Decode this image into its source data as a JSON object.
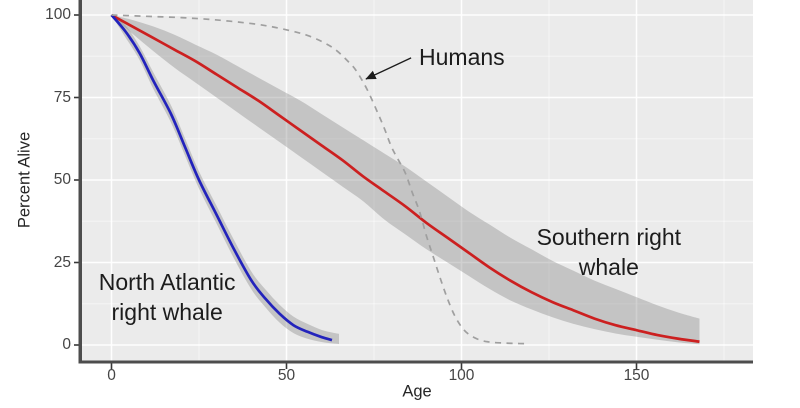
{
  "chart_data": {
    "type": "line",
    "title": "",
    "xlabel": "Age",
    "ylabel": "Percent Alive",
    "xlim": [
      -8,
      183
    ],
    "ylim": [
      -4.8,
      104.5
    ],
    "xticks": [
      0,
      50,
      100,
      150
    ],
    "yticks": [
      0,
      25,
      50,
      75,
      100
    ],
    "xticks_minor": [
      25,
      75,
      125,
      175
    ],
    "yticks_minor": [
      12.5,
      37.5,
      62.5,
      87.5
    ],
    "grid": "white major and minor gridlines on gray panel",
    "legend_position": "none (inline text annotations)",
    "panel_bg": "#ebebeb",
    "axis_line_color": "#4d4d4d",
    "band_fill": "rgba(128,128,128,0.36)",
    "series": [
      {
        "name": "Southern right whale",
        "color": "#cc2020",
        "dashed": false,
        "points": [
          [
            0,
            100
          ],
          [
            6,
            96.5
          ],
          [
            12,
            93
          ],
          [
            18,
            89.5
          ],
          [
            24,
            86
          ],
          [
            30,
            82
          ],
          [
            36,
            78
          ],
          [
            42,
            74
          ],
          [
            48,
            69.5
          ],
          [
            54,
            65
          ],
          [
            60,
            60.5
          ],
          [
            66,
            56
          ],
          [
            72,
            51
          ],
          [
            78,
            46.5
          ],
          [
            84,
            42
          ],
          [
            90,
            37
          ],
          [
            96,
            32.5
          ],
          [
            102,
            28
          ],
          [
            108,
            23.5
          ],
          [
            114,
            19.5
          ],
          [
            120,
            16
          ],
          [
            126,
            13
          ],
          [
            132,
            10.5
          ],
          [
            138,
            8
          ],
          [
            144,
            6
          ],
          [
            150,
            4.5
          ],
          [
            156,
            3
          ],
          [
            162,
            1.9
          ],
          [
            168,
            1
          ]
        ],
        "band": [
          [
            0,
            100,
            100
          ],
          [
            6,
            98.5,
            94.3
          ],
          [
            12,
            96.5,
            89
          ],
          [
            18,
            94,
            84
          ],
          [
            24,
            91,
            79.5
          ],
          [
            30,
            88,
            75
          ],
          [
            36,
            84.5,
            70.5
          ],
          [
            42,
            81,
            66
          ],
          [
            48,
            77.5,
            61.5
          ],
          [
            54,
            74,
            57
          ],
          [
            60,
            70,
            52.5
          ],
          [
            66,
            66,
            48
          ],
          [
            72,
            62,
            43.5
          ],
          [
            78,
            58,
            38
          ],
          [
            84,
            54,
            33.5
          ],
          [
            90,
            49.5,
            29
          ],
          [
            96,
            45,
            25
          ],
          [
            102,
            40.5,
            21
          ],
          [
            108,
            36.5,
            17
          ],
          [
            114,
            32.5,
            13.5
          ],
          [
            120,
            29,
            10.8
          ],
          [
            126,
            25.5,
            8.4
          ],
          [
            132,
            22.5,
            6.4
          ],
          [
            138,
            19.5,
            4.8
          ],
          [
            144,
            17,
            3.5
          ],
          [
            150,
            14.5,
            2.5
          ],
          [
            156,
            12,
            1.6
          ],
          [
            162,
            9.8,
            0.8
          ],
          [
            168,
            8,
            0.2
          ]
        ]
      },
      {
        "name": "North Atlantic right whale",
        "color": "#2323bc",
        "dashed": false,
        "points": [
          [
            0,
            100
          ],
          [
            4,
            95
          ],
          [
            8,
            88.5
          ],
          [
            12,
            80
          ],
          [
            17,
            70
          ],
          [
            21,
            60
          ],
          [
            25,
            50
          ],
          [
            30,
            39.5
          ],
          [
            35,
            29
          ],
          [
            40,
            19.5
          ],
          [
            44,
            14
          ],
          [
            48,
            9.5
          ],
          [
            52,
            6
          ],
          [
            56,
            4
          ],
          [
            60,
            2.4
          ],
          [
            63,
            1.5
          ]
        ],
        "band": [
          [
            0,
            100,
            100
          ],
          [
            4,
            96.8,
            93.2
          ],
          [
            8,
            90.6,
            86.4
          ],
          [
            12,
            82.5,
            77.5
          ],
          [
            17,
            72.6,
            67.4
          ],
          [
            21,
            62.6,
            57.4
          ],
          [
            25,
            52.6,
            47.4
          ],
          [
            30,
            42.2,
            36.8
          ],
          [
            35,
            31.8,
            26.2
          ],
          [
            40,
            22.2,
            16.8
          ],
          [
            44,
            16.8,
            11.4
          ],
          [
            48,
            12.2,
            6.8
          ],
          [
            52,
            8.6,
            3.6
          ],
          [
            56,
            6.4,
            1.9
          ],
          [
            60,
            4.6,
            0.9
          ],
          [
            63,
            3.8,
            0.5
          ],
          [
            65,
            3.4,
            0.3
          ]
        ]
      },
      {
        "name": "Humans",
        "color": "#9f9f9f",
        "dashed": true,
        "points": [
          [
            0,
            100
          ],
          [
            10,
            99.6
          ],
          [
            20,
            99.2
          ],
          [
            30,
            98.5
          ],
          [
            40,
            97.4
          ],
          [
            46,
            96.4
          ],
          [
            52,
            95
          ],
          [
            56,
            93.8
          ],
          [
            60,
            92
          ],
          [
            64,
            89.5
          ],
          [
            68,
            85.5
          ],
          [
            70,
            83
          ],
          [
            73,
            77.5
          ],
          [
            76,
            70.5
          ],
          [
            78,
            65.5
          ],
          [
            80,
            60
          ],
          [
            82,
            56
          ],
          [
            84,
            52
          ],
          [
            86,
            46
          ],
          [
            88,
            40.5
          ],
          [
            90,
            33
          ],
          [
            92,
            26.5
          ],
          [
            94,
            20
          ],
          [
            96,
            14
          ],
          [
            98,
            9
          ],
          [
            100,
            5.5
          ],
          [
            102,
            3.3
          ],
          [
            105,
            1.6
          ],
          [
            108,
            0.9
          ],
          [
            112,
            0.6
          ],
          [
            116,
            0.45
          ],
          [
            119,
            0.4
          ]
        ]
      }
    ],
    "annotations": [
      {
        "id": "humans",
        "text": "Humans",
        "x": 100.1,
        "y": 87.3,
        "arrow_from": [
          85.6,
          87.0
        ],
        "arrow_to": [
          72.7,
          80.6
        ]
      },
      {
        "id": "north-atlantic-right-whale",
        "text": "North Atlantic\nright whale",
        "x": 15.9,
        "y": 14.5
      },
      {
        "id": "southern-right-whale",
        "text": "Southern right whale",
        "x": 142.1,
        "y": 28.2
      }
    ]
  }
}
